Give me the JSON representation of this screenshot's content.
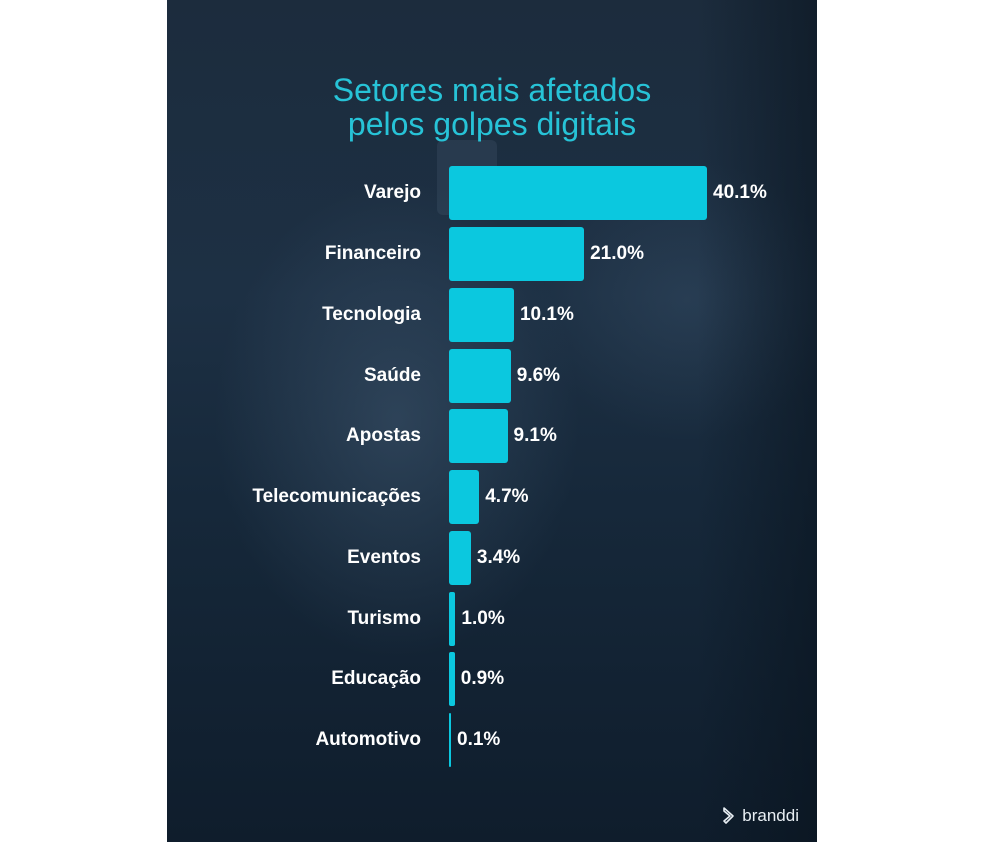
{
  "title": {
    "line1": "Setores mais afetados",
    "line2": "pelos golpes digitais"
  },
  "brand": {
    "name": "branddi",
    "icon": "branddi-logo-icon"
  },
  "colors": {
    "title": "#27c3d7",
    "bar": "#0bc8df",
    "background": "#1a2b3c",
    "text": "#ffffff"
  },
  "rows": [
    {
      "label": "Varejo",
      "value_label": "40.1%"
    },
    {
      "label": "Financeiro",
      "value_label": "21.0%"
    },
    {
      "label": "Tecnologia",
      "value_label": "10.1%"
    },
    {
      "label": "Saúde",
      "value_label": "9.6%"
    },
    {
      "label": "Apostas",
      "value_label": "9.1%"
    },
    {
      "label": "Telecomunicações",
      "value_label": "4.7%"
    },
    {
      "label": "Eventos",
      "value_label": "3.4%"
    },
    {
      "label": "Turismo",
      "value_label": "1.0%"
    },
    {
      "label": "Educação",
      "value_label": "0.9%"
    },
    {
      "label": "Automotivo",
      "value_label": "0.1%"
    }
  ],
  "chart_data": {
    "type": "bar",
    "orientation": "horizontal",
    "title": "Setores mais afetados pelos golpes digitais",
    "categories": [
      "Varejo",
      "Financeiro",
      "Tecnologia",
      "Saúde",
      "Apostas",
      "Telecomunicações",
      "Eventos",
      "Turismo",
      "Educação",
      "Automotivo"
    ],
    "values": [
      40.1,
      21.0,
      10.1,
      9.6,
      9.1,
      4.7,
      3.4,
      1.0,
      0.9,
      0.1
    ],
    "unit": "%",
    "xlabel": "",
    "ylabel": "",
    "grid": false,
    "legend": null,
    "data_labels": true
  }
}
